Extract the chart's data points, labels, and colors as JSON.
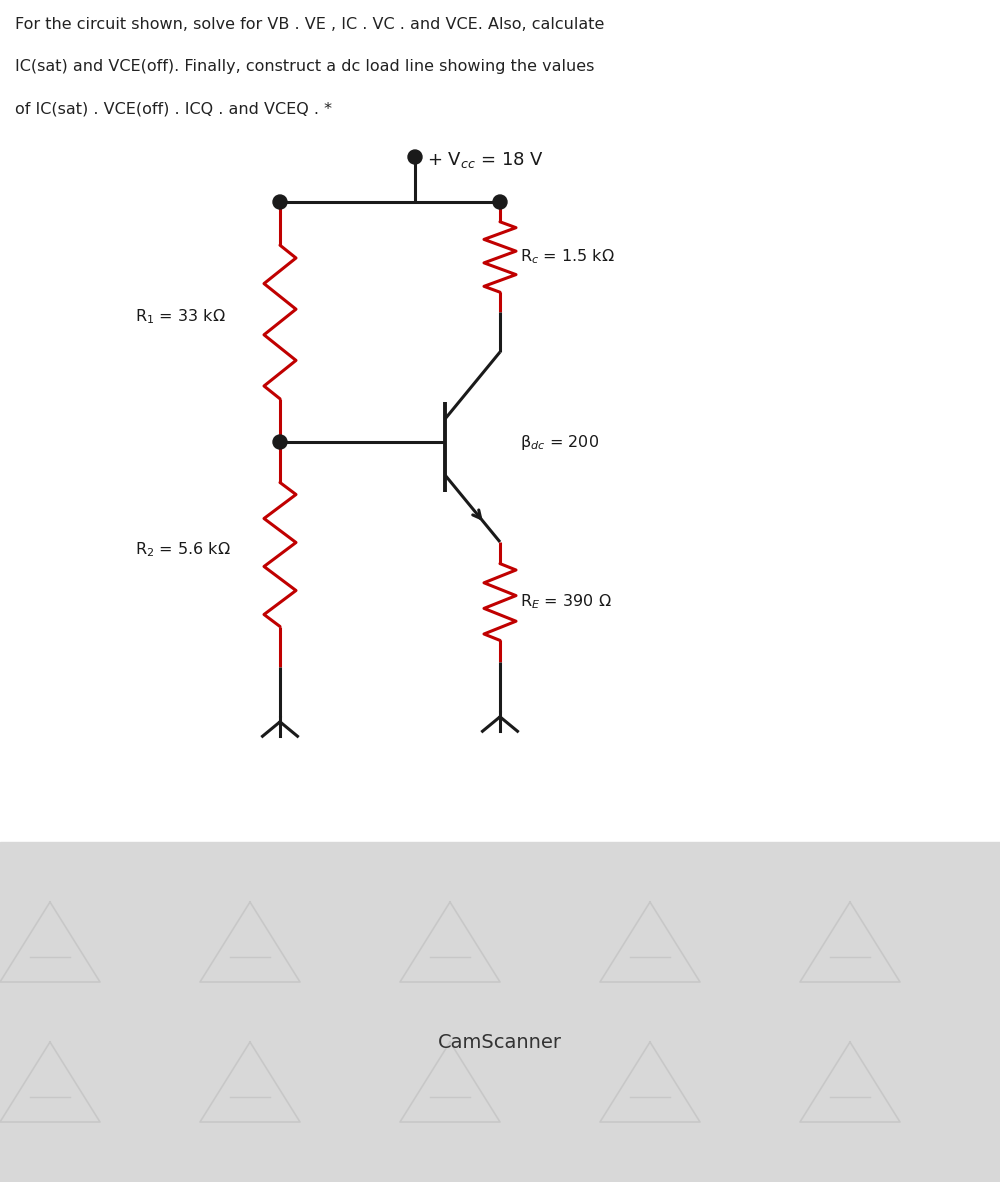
{
  "title_lines": [
    "For the circuit shown, solve for VB . VE , IC . VC . and VCE. Also, calculate",
    "IC(sat) and VCE(off). Finally, construct a dc load line showing the values",
    "of IC(sat) . VCE(off) . ICQ . and VCEQ . *"
  ],
  "vcc_label": "+ V$_{cc}$ = 18 V",
  "Rc_label": "R$_c$ = 1.5 kΩ",
  "R1_label": "R$_1$ = 33 kΩ",
  "R2_label": "R$_2$ = 5.6 kΩ",
  "RE_label": "R$_E$ = 390 Ω",
  "beta_label": "β$_{dc}$ = 200",
  "resistor_color": "#c00000",
  "wire_color": "#1a1a1a",
  "bg_color": "#ffffff",
  "title_color": "#222222",
  "cam_bg_color": "#d8d8d8",
  "cam_text_color": "#333333",
  "fig_width": 10.0,
  "fig_height": 11.82,
  "dpi": 100
}
